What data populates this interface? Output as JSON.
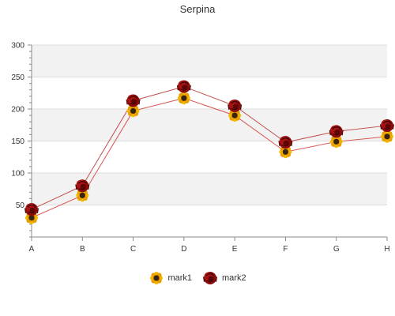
{
  "chart_data": {
    "type": "line",
    "title": "Serpina",
    "categories": [
      "A",
      "B",
      "C",
      "D",
      "E",
      "F",
      "G",
      "H"
    ],
    "ylim": [
      0,
      300
    ],
    "yticks": [
      50,
      100,
      150,
      200,
      250,
      300
    ],
    "grid": true,
    "legend_position": "bottom",
    "series": [
      {
        "name": "mark1",
        "values": [
          30,
          65,
          197,
          217,
          190,
          133,
          149,
          157
        ],
        "color": "#d9534f",
        "marker": "sunflower-icon"
      },
      {
        "name": "mark2",
        "values": [
          43,
          80,
          213,
          235,
          205,
          148,
          165,
          174
        ],
        "color": "#c0504d",
        "marker": "red-rose-icon"
      }
    ]
  }
}
